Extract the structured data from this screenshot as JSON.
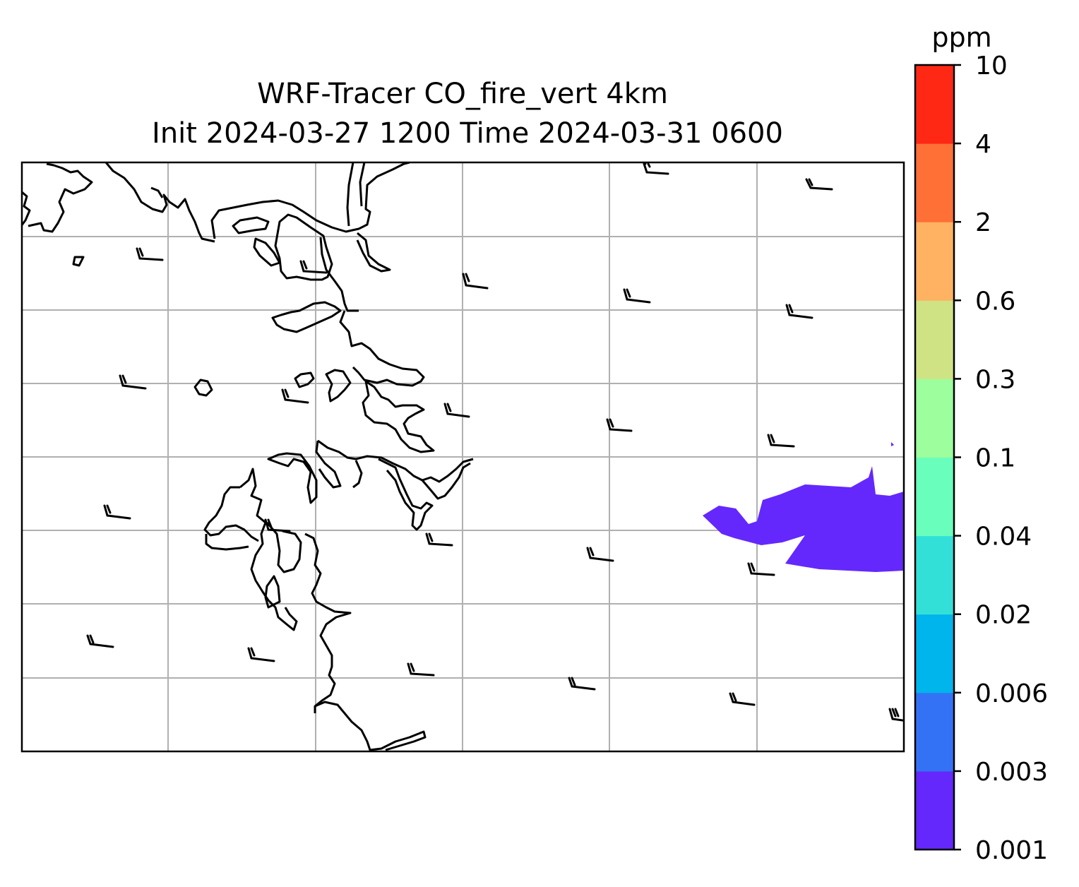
{
  "title": {
    "line1": "WRF-Tracer CO_fire_vert 4km",
    "line2": "Init 2024-03-27 1200 Time 2024-03-31 0600"
  },
  "colorbar": {
    "unit": "ppm",
    "levels": [
      "0.001",
      "0.003",
      "0.006",
      "0.02",
      "0.04",
      "0.1",
      "0.3",
      "0.6",
      "2",
      "4",
      "10"
    ],
    "colors": [
      "#6428fc",
      "#3472f5",
      "#00b4ec",
      "#32e0d8",
      "#6afebc",
      "#9cfe9c",
      "#d0e384",
      "#feb262",
      "#fe7036",
      "#fe2814"
    ]
  },
  "map": {
    "gridlines": true,
    "coastline_color": "#000000",
    "grid_color": "#b0b0b0",
    "plume": {
      "level": "0.001",
      "color": "#6428fc",
      "location": "east-center"
    },
    "wind_barbs": {
      "count": 24,
      "direction": "mostly from the west",
      "style": "black barbs with feathers"
    }
  }
}
